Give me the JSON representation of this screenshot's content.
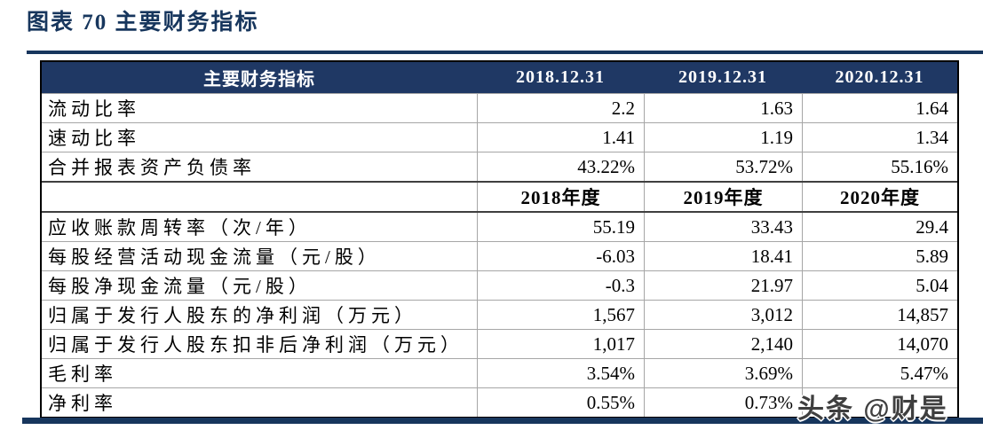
{
  "figure_caption": "图表 70  主要财务指标",
  "watermark": "头条 @财是",
  "colors": {
    "header_navy": "#1F3864",
    "rule_navy": "#17365D",
    "grid_gray": "#A6A6A6",
    "outer_border": "#000000",
    "watermark_gray": "#3F3F3F"
  },
  "table": {
    "columns": [
      "主要财务指标",
      "2018.12.31",
      "2019.12.31",
      "2020.12.31"
    ],
    "rows": [
      {
        "label": "流动比率",
        "values": [
          "2.2",
          "1.63",
          "1.64"
        ],
        "subheader": false
      },
      {
        "label": "速动比率",
        "values": [
          "1.41",
          "1.19",
          "1.34"
        ],
        "subheader": false
      },
      {
        "label": "合并报表资产负债率",
        "values": [
          "43.22%",
          "53.72%",
          "55.16%"
        ],
        "subheader": false
      },
      {
        "label": "",
        "values": [
          "2018年度",
          "2019年度",
          "2020年度"
        ],
        "subheader": true
      },
      {
        "label": "应收账款周转率（次/年）",
        "values": [
          "55.19",
          "33.43",
          "29.4"
        ],
        "subheader": false
      },
      {
        "label": "每股经营活动现金流量（元/股）",
        "values": [
          "-6.03",
          "18.41",
          "5.89"
        ],
        "subheader": false
      },
      {
        "label": "每股净现金流量（元/股）",
        "values": [
          "-0.3",
          "21.97",
          "5.04"
        ],
        "subheader": false
      },
      {
        "label": "归属于发行人股东的净利润（万元）",
        "values": [
          "1,567",
          "3,012",
          "14,857"
        ],
        "subheader": false
      },
      {
        "label": "归属于发行人股东扣非后净利润（万元）",
        "values": [
          "1,017",
          "2,140",
          "14,070"
        ],
        "subheader": false
      },
      {
        "label": "毛利率",
        "values": [
          "3.54%",
          "3.69%",
          "5.47%"
        ],
        "subheader": false
      },
      {
        "label": "净利率",
        "values": [
          "0.55%",
          "0.73%",
          ""
        ],
        "subheader": false
      }
    ]
  }
}
